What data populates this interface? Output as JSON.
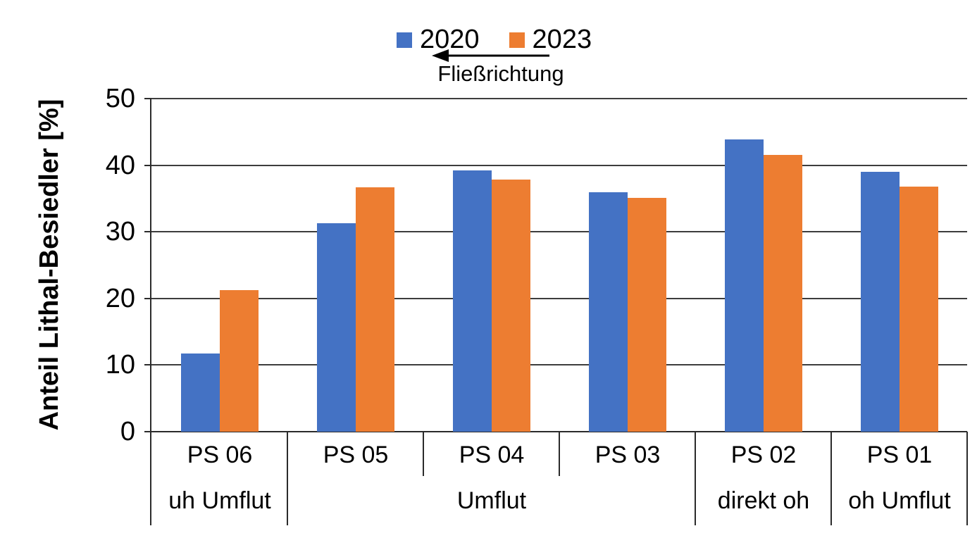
{
  "chart_data": {
    "type": "bar",
    "title": "",
    "categories": [
      "PS 06",
      "PS 05",
      "PS 04",
      "PS 03",
      "PS 02",
      "PS 01"
    ],
    "group_labels": [
      {
        "label": "uh Umflut",
        "span": [
          0,
          1
        ]
      },
      {
        "label": "Umflut",
        "span": [
          1,
          4
        ]
      },
      {
        "label": "direkt oh",
        "span": [
          4,
          5
        ]
      },
      {
        "label": "oh Umflut",
        "span": [
          5,
          6
        ]
      }
    ],
    "series": [
      {
        "name": "2020",
        "color": "#4472C4",
        "values": [
          11.7,
          31.3,
          39.2,
          35.9,
          43.9,
          39.0
        ]
      },
      {
        "name": "2023",
        "color": "#ED7D31",
        "values": [
          21.3,
          36.7,
          37.8,
          35.1,
          41.5,
          36.8
        ]
      }
    ],
    "xlabel": "",
    "ylabel": "Anteil Lithal-Besiedler [%]",
    "ylim": [
      0,
      50
    ],
    "yticks": [
      0,
      10,
      20,
      30,
      40,
      50
    ],
    "grid": "horizontal",
    "legend_position": "top-center",
    "annotation": {
      "label": "Fließrichtung",
      "arrow_direction": "left"
    }
  },
  "colors": {
    "series_2020": "#4472C4",
    "series_2023": "#ED7D31",
    "gridline": "#3d3d3d",
    "axis": "#2b2b2b",
    "text": "#000000",
    "background": "#ffffff"
  }
}
